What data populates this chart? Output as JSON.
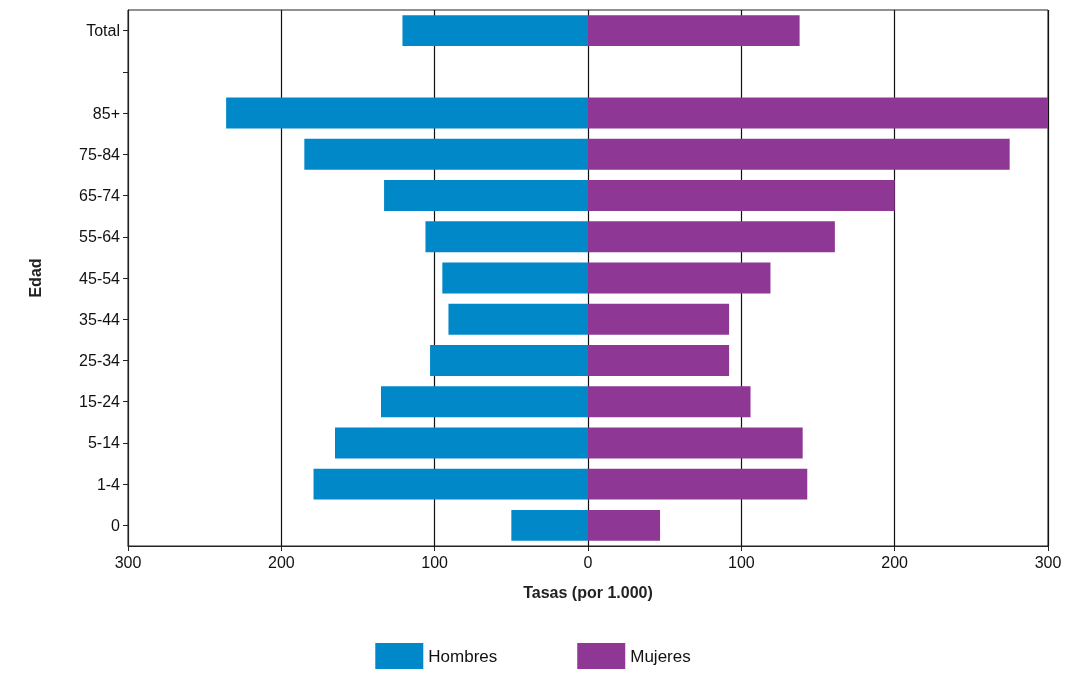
{
  "chart_data": {
    "type": "bar",
    "orientation": "horizontal",
    "xlabel": "Tasas (por 1.000)",
    "ylabel": "Edad",
    "categories": [
      "Total",
      null,
      "85+",
      "75-84",
      "65-74",
      "55-64",
      "45-54",
      "35-44",
      "25-34",
      "15-24",
      "5-14",
      "1-4",
      "0"
    ],
    "series": [
      {
        "name": "Hombres",
        "color": "#0088c8",
        "values": [
          -121,
          null,
          -236,
          -185,
          -133,
          -106,
          -95,
          -91,
          -103,
          -135,
          -165,
          -179,
          -50
        ]
      },
      {
        "name": "Mujeres",
        "color": "#8e3795",
        "values": [
          138,
          null,
          300,
          275,
          200,
          161,
          119,
          92,
          92,
          106,
          140,
          143,
          47
        ]
      }
    ],
    "xlim": [
      -300,
      300
    ],
    "xticks": [
      {
        "value": -300,
        "label": "300"
      },
      {
        "value": -200,
        "label": "200"
      },
      {
        "value": -100,
        "label": "100"
      },
      0,
      100,
      200,
      300
    ],
    "grid": "x",
    "legend": "bottom",
    "stacked": true
  }
}
